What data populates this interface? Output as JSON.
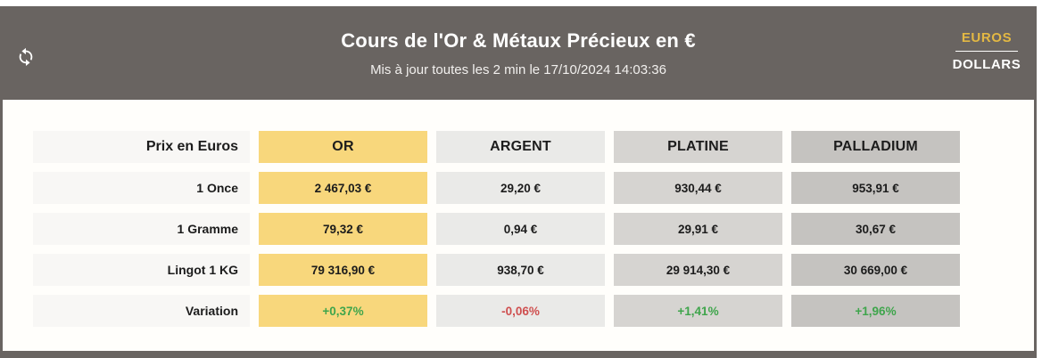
{
  "header": {
    "title": "Cours de l'Or & Métaux Précieux en €",
    "subtitle": "Mis à jour toutes les 2 min le 17/10/2024 14:03:36",
    "refresh_icon": "refresh-icon",
    "currency_toggle": {
      "active": "EUROS",
      "inactive": "DOLLARS"
    }
  },
  "colors": {
    "frame": "#696461",
    "accent_gold_text": "#e3b843",
    "gold_column": "#f8d77c",
    "silver_column": "#eaeae8",
    "platinum_column": "#d6d4d1",
    "palladium_column": "#c5c3c0",
    "label_column": "#f8f7f5",
    "positive": "#3fa54c",
    "negative": "#cf4f4f"
  },
  "table": {
    "corner_label": "Prix en Euros",
    "columns": [
      {
        "label": "OR",
        "bg": "#f8d77c"
      },
      {
        "label": "ARGENT",
        "bg": "#eaeae8"
      },
      {
        "label": "PLATINE",
        "bg": "#d6d4d1"
      },
      {
        "label": "PALLADIUM",
        "bg": "#c5c3c0"
      }
    ],
    "rows": [
      {
        "label": "1 Once",
        "values": [
          "2 467,03 €",
          "29,20 €",
          "930,44 €",
          "953,91 €"
        ]
      },
      {
        "label": "1 Gramme",
        "values": [
          "79,32 €",
          "0,94 €",
          "29,91 €",
          "30,67 €"
        ]
      },
      {
        "label": "Lingot 1 KG",
        "values": [
          "79 316,90 €",
          "938,70 €",
          "29 914,30 €",
          "30 669,00 €"
        ]
      }
    ],
    "variation_row": {
      "label": "Variation",
      "values": [
        {
          "text": "+0,37%",
          "trend": "up"
        },
        {
          "text": "-0,06%",
          "trend": "down"
        },
        {
          "text": "+1,41%",
          "trend": "up"
        },
        {
          "text": "+1,96%",
          "trend": "up"
        }
      ]
    }
  }
}
